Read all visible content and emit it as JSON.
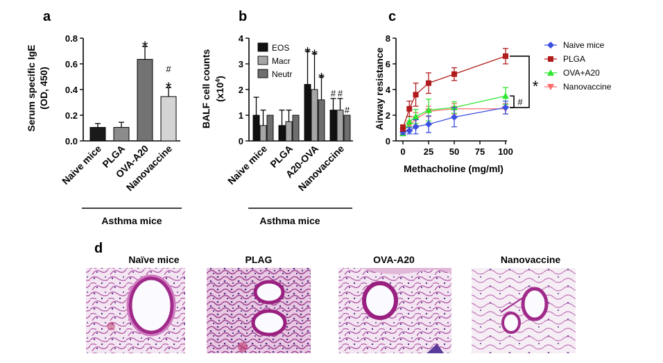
{
  "panels": {
    "a": "a",
    "b": "b",
    "c": "c",
    "d": "d"
  },
  "chart_data": [
    {
      "id": "a",
      "type": "bar",
      "ylabel_line1": "Serum specific IgE",
      "ylabel_line2": "(OD, 450)",
      "ylim": [
        0,
        0.8
      ],
      "yticks": [
        "0.0",
        "0.2",
        "0.4",
        "0.6",
        "0.8"
      ],
      "categories": [
        "Naive mice",
        "PLGA",
        "OVA-A20",
        "Nanovaccine"
      ],
      "values": [
        0.105,
        0.105,
        0.635,
        0.345
      ],
      "errors": [
        0.03,
        0.04,
        0.1,
        0.07
      ],
      "colors": [
        "#1a1a1a",
        "#8c8c8c",
        "#737373",
        "#d4d4d4"
      ],
      "annotations": [
        {
          "category": "OVA-A20",
          "text": "*"
        },
        {
          "category": "Nanovaccine",
          "text": "*"
        },
        {
          "category": "Nanovaccine",
          "text": "#"
        }
      ],
      "group_label": "Asthma mice"
    },
    {
      "id": "b",
      "type": "bar",
      "ylabel_line1": "BALF cell counts",
      "ylabel_line2": "(x10",
      "ylabel_sup": "4",
      "ylabel_close": ")",
      "ylim": [
        0,
        4
      ],
      "yticks": [
        "0",
        "1",
        "2",
        "3",
        "4"
      ],
      "categories": [
        "Naive mice",
        "PLGA",
        "A20-OVA",
        "Nanovaccine"
      ],
      "series": [
        {
          "name": "EOS",
          "color": "#111111",
          "values": [
            1.0,
            0.6,
            2.2,
            1.2
          ],
          "errors": [
            0.7,
            0.6,
            1.3,
            0.45
          ]
        },
        {
          "name": "Macr",
          "color": "#a6a6a6",
          "values": [
            0.6,
            0.75,
            2.0,
            1.2
          ],
          "errors": [
            0.6,
            0.45,
            1.4,
            0.45
          ]
        },
        {
          "name": "Neutr",
          "color": "#6e6e6e",
          "values": [
            1.0,
            1.0,
            1.6,
            1.0
          ],
          "errors": [
            0.0,
            0.0,
            0.9,
            0.0
          ]
        }
      ],
      "annotations": [
        {
          "category": "A20-OVA",
          "series": "EOS",
          "text": "*"
        },
        {
          "category": "A20-OVA",
          "series": "Macr",
          "text": "*"
        },
        {
          "category": "A20-OVA",
          "series": "Neutr",
          "text": "*"
        },
        {
          "category": "Nanovaccine",
          "series": "EOS",
          "text": "#"
        },
        {
          "category": "Nanovaccine",
          "series": "Macr",
          "text": "#"
        },
        {
          "category": "Nanovaccine",
          "series": "Neutr",
          "text": "#"
        }
      ],
      "legend_position": "top-left",
      "group_label": "Asthma mice"
    },
    {
      "id": "c",
      "type": "line",
      "xlabel": "Methacholine (mg/ml)",
      "ylabel": "Airway resistance",
      "xlim": [
        0,
        100
      ],
      "ylim": [
        0,
        8
      ],
      "xticks": [
        "0",
        "25",
        "50",
        "75",
        "100"
      ],
      "yticks": [
        "0",
        "2",
        "4",
        "6",
        "8"
      ],
      "x": [
        0,
        6.25,
        12.5,
        25,
        50,
        100
      ],
      "series": [
        {
          "name": "Naive mice",
          "color": "#3a4fe0",
          "marker": "diamond",
          "values": [
            0.7,
            0.8,
            1.1,
            1.3,
            1.85,
            2.6
          ],
          "errors": [
            0.2,
            0.25,
            0.55,
            0.65,
            0.75,
            0.5
          ]
        },
        {
          "name": "PLGA",
          "color": "#b01c1c",
          "marker": "square",
          "values": [
            1.0,
            2.5,
            3.6,
            4.5,
            5.2,
            6.6
          ],
          "errors": [
            0.25,
            0.6,
            0.9,
            0.8,
            0.5,
            0.6
          ]
        },
        {
          "name": "OVA+A20",
          "color": "#2ee62e",
          "marker": "triangle-up",
          "values": [
            0.6,
            1.5,
            1.9,
            2.4,
            2.6,
            3.5
          ],
          "errors": [
            0.2,
            0.4,
            0.55,
            0.85,
            0.45,
            0.65
          ]
        },
        {
          "name": "Nanovaccine",
          "color": "#ff6b6b",
          "marker": "triangle-down",
          "values": [
            0.8,
            1.2,
            1.7,
            2.3,
            2.5,
            2.5
          ],
          "errors": [
            0.2,
            0.35,
            0.5,
            0.4,
            0.4,
            0.4
          ]
        }
      ],
      "annotations": [
        {
          "between": [
            "PLGA",
            "Naive mice"
          ],
          "text": "*"
        },
        {
          "between": [
            "OVA+A20",
            "Naive mice"
          ],
          "text": "#"
        }
      ],
      "legend_position": "right"
    }
  ],
  "histology": {
    "titles": [
      "Naïve mice",
      "PLAG",
      "OVA-A20",
      "Nanovaccine"
    ]
  }
}
